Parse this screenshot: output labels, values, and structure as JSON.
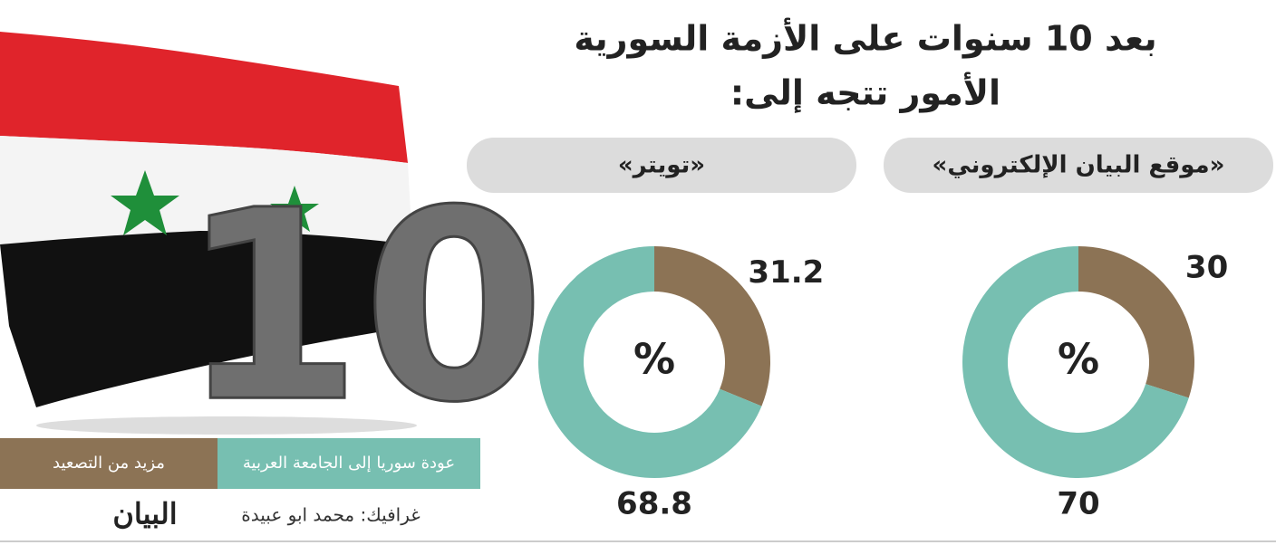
{
  "title_lines": [
    "بعد 10 سنوات على الأزمة السورية",
    "الأمور تتجه إلى:"
  ],
  "hero_number": "10",
  "chart_data": [
    {
      "type": "pie",
      "title": "«موقع البيان الإلكتروني»",
      "center_label": "%",
      "categories": [
        "مزيد من التصعيد",
        "عودة سوريا إلى الجامعة العربية"
      ],
      "values": [
        30,
        70
      ],
      "colors": [
        "#8c7355",
        "#77bfb1"
      ]
    },
    {
      "type": "pie",
      "title": "«تويتر»",
      "center_label": "%",
      "categories": [
        "مزيد من التصعيد",
        "عودة سوريا إلى الجامعة العربية"
      ],
      "values": [
        31.2,
        68.8
      ],
      "colors": [
        "#8c7355",
        "#77bfb1"
      ]
    }
  ],
  "credit": "غرافيك: محمد ابو عبيدة",
  "logo": "البيان"
}
